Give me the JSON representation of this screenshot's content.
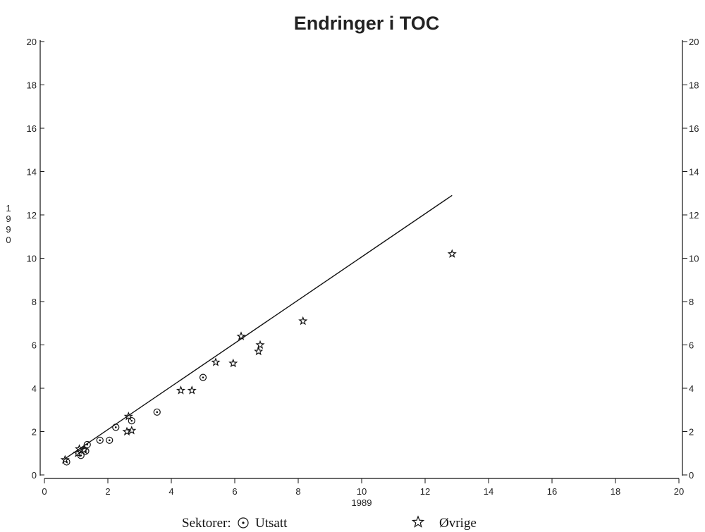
{
  "chart_data": {
    "type": "scatter",
    "title": "Endringer i TOC",
    "xlabel": "1989",
    "ylabel": "1990",
    "xlim": [
      0,
      20
    ],
    "ylim": [
      0,
      20
    ],
    "x_ticks": [
      0,
      2,
      4,
      6,
      8,
      10,
      12,
      14,
      16,
      18,
      20
    ],
    "y_ticks": [
      0,
      2,
      4,
      6,
      8,
      10,
      12,
      14,
      16,
      18,
      20
    ],
    "grid": false,
    "legend_title": "Sektorer:",
    "series": [
      {
        "name": "Utsatt",
        "marker": "circle-dot",
        "points": [
          [
            0.7,
            0.6
          ],
          [
            1.15,
            0.9
          ],
          [
            1.3,
            1.1
          ],
          [
            1.35,
            1.4
          ],
          [
            1.75,
            1.6
          ],
          [
            2.05,
            1.6
          ],
          [
            2.25,
            2.2
          ],
          [
            2.75,
            2.5
          ],
          [
            3.55,
            2.9
          ],
          [
            5.0,
            4.5
          ]
        ]
      },
      {
        "name": "Øvrige",
        "marker": "star",
        "points": [
          [
            0.65,
            0.7
          ],
          [
            1.05,
            1.0
          ],
          [
            1.1,
            1.2
          ],
          [
            1.25,
            1.15
          ],
          [
            2.6,
            2.0
          ],
          [
            2.65,
            2.7
          ],
          [
            2.75,
            2.05
          ],
          [
            4.3,
            3.9
          ],
          [
            4.65,
            3.9
          ],
          [
            5.4,
            5.2
          ],
          [
            5.95,
            5.15
          ],
          [
            6.2,
            6.4
          ],
          [
            6.75,
            5.7
          ],
          [
            6.8,
            6.0
          ],
          [
            8.15,
            7.1
          ],
          [
            12.85,
            10.2
          ]
        ]
      }
    ],
    "fit_line": {
      "x": [
        0.65,
        12.85
      ],
      "y": [
        0.75,
        12.9
      ]
    }
  }
}
